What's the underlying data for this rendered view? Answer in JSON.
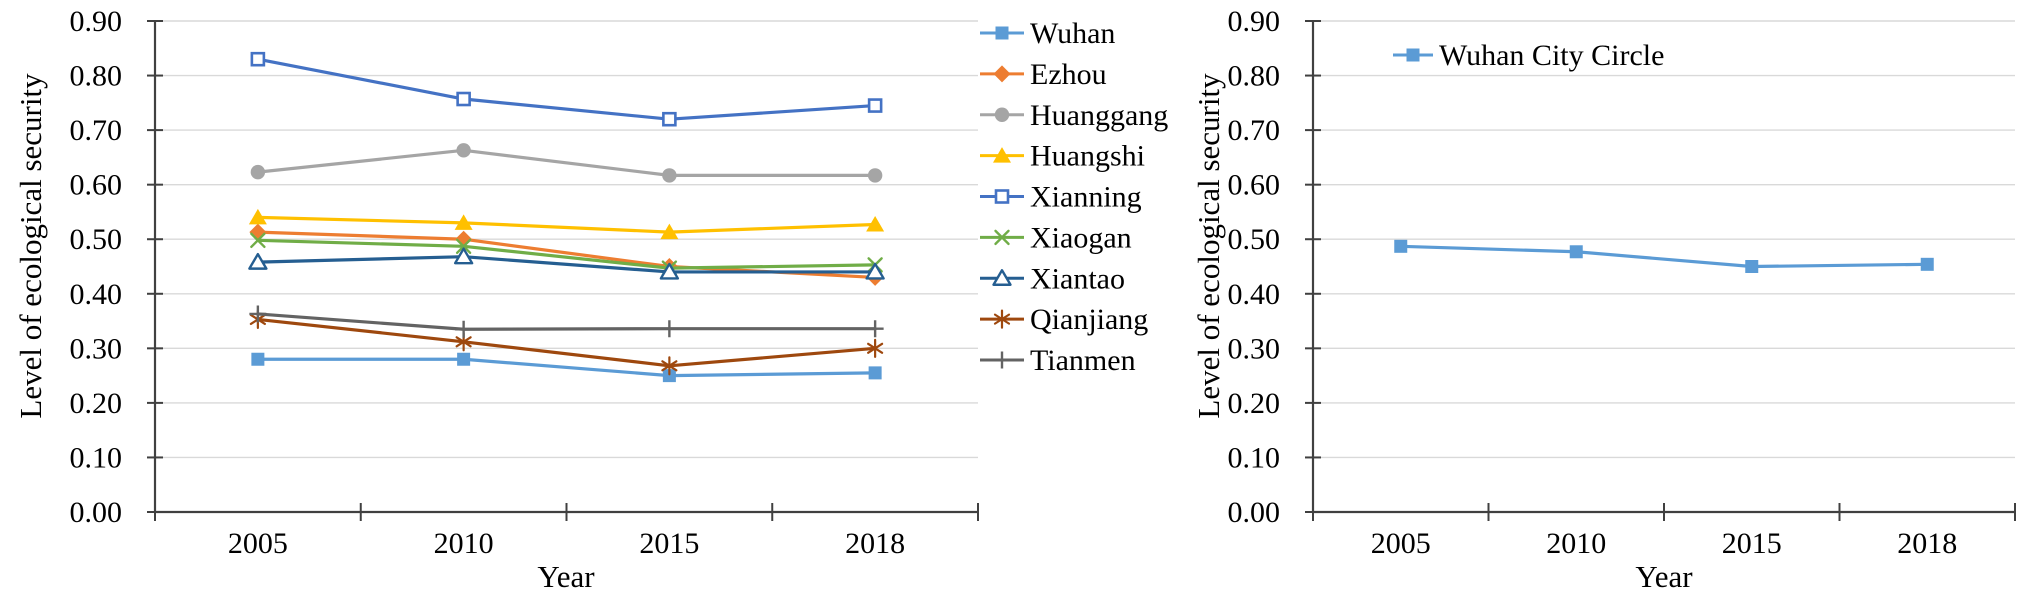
{
  "figure": {
    "background": "#FFFFFF"
  },
  "style": {
    "axis_color": "#404040",
    "gridline_color": "#D9D9D9",
    "text_color": "#000000",
    "marker_open_fill": "#FFFFFF"
  },
  "chart_data": [
    {
      "type": "line",
      "title": "",
      "xlabel": "Year",
      "ylabel": "Level of ecological security",
      "categories": [
        "2005",
        "2010",
        "2015",
        "2018"
      ],
      "y_tick_labels": [
        "0.00",
        "0.10",
        "0.20",
        "0.30",
        "0.40",
        "0.50",
        "0.60",
        "0.70",
        "0.80",
        "0.90"
      ],
      "ylim": [
        0,
        0.9
      ],
      "grid": true,
      "legend_position": "right",
      "series": [
        {
          "name": "Wuhan",
          "color": "#5B9BD5",
          "marker": "square",
          "values": [
            0.28,
            0.28,
            0.25,
            0.255
          ]
        },
        {
          "name": "Ezhou",
          "color": "#ED7D31",
          "marker": "diamond",
          "values": [
            0.513,
            0.5,
            0.45,
            0.43
          ]
        },
        {
          "name": "Huanggang",
          "color": "#A5A5A5",
          "marker": "circle",
          "values": [
            0.623,
            0.663,
            0.617,
            0.617
          ]
        },
        {
          "name": "Huangshi",
          "color": "#FFC000",
          "marker": "triangle",
          "values": [
            0.54,
            0.53,
            0.513,
            0.527
          ]
        },
        {
          "name": "Xianning",
          "color": "#4472C4",
          "marker": "open-square",
          "values": [
            0.83,
            0.757,
            0.72,
            0.745
          ]
        },
        {
          "name": "Xiaogan",
          "color": "#70AD47",
          "marker": "x",
          "values": [
            0.498,
            0.487,
            0.447,
            0.453
          ]
        },
        {
          "name": "Xiantao",
          "color": "#255E91",
          "marker": "open-triangle",
          "values": [
            0.458,
            0.468,
            0.44,
            0.44
          ]
        },
        {
          "name": "Qianjiang",
          "color": "#9E480E",
          "marker": "asterisk",
          "values": [
            0.353,
            0.312,
            0.268,
            0.3
          ]
        },
        {
          "name": "Tianmen",
          "color": "#636363",
          "marker": "plus",
          "values": [
            0.363,
            0.335,
            0.336,
            0.336
          ]
        }
      ]
    },
    {
      "type": "line",
      "title": "",
      "xlabel": "Year",
      "ylabel": "Level of ecological security",
      "categories": [
        "2005",
        "2010",
        "2015",
        "2018"
      ],
      "y_tick_labels": [
        "0.00",
        "0.10",
        "0.20",
        "0.30",
        "0.40",
        "0.50",
        "0.60",
        "0.70",
        "0.80",
        "0.90"
      ],
      "ylim": [
        0,
        0.9
      ],
      "grid": true,
      "legend_position": "top",
      "series": [
        {
          "name": "Wuhan City Circle",
          "color": "#5B9BD5",
          "marker": "square",
          "values": [
            0.487,
            0.477,
            0.45,
            0.454
          ]
        }
      ]
    }
  ]
}
